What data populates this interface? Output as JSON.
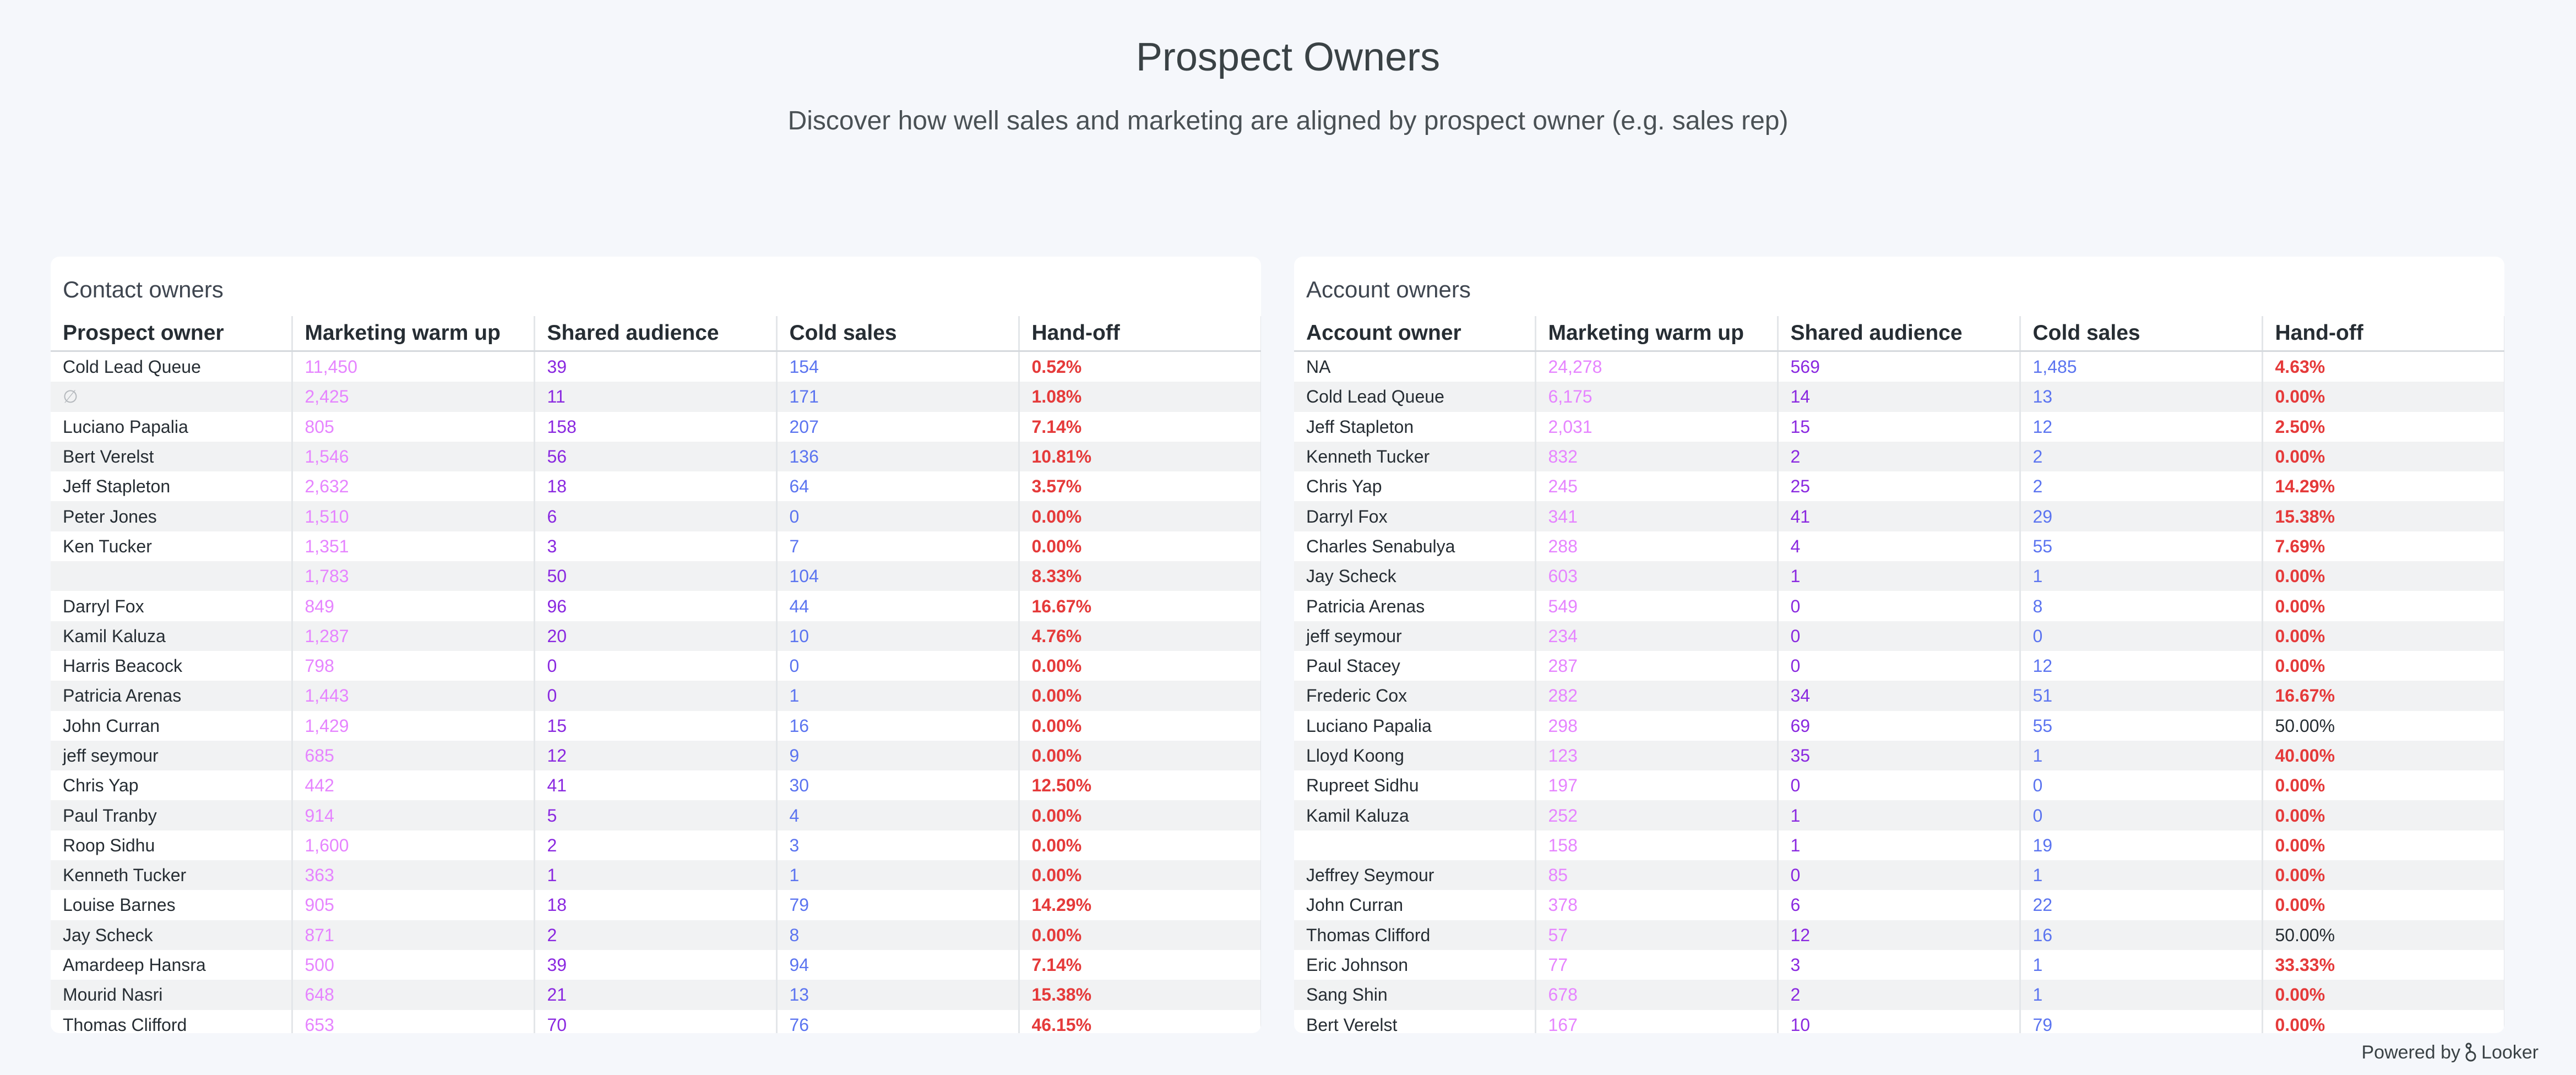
{
  "header": {
    "title": "Prospect Owners",
    "subtitle": "Discover how well sales and marketing are aligned by prospect owner (e.g. sales rep)"
  },
  "contact_tile": {
    "title": "Contact owners",
    "columns": [
      "Prospect owner",
      "Marketing warm up",
      "Shared audience",
      "Cold sales",
      "Hand-off"
    ],
    "rows": [
      [
        "Cold Lead Queue",
        "11,450",
        "39",
        "154",
        "0.52%"
      ],
      [
        "∅",
        "2,425",
        "11",
        "171",
        "1.08%"
      ],
      [
        "Luciano Papalia",
        "805",
        "158",
        "207",
        "7.14%"
      ],
      [
        "Bert Verelst",
        "1,546",
        "56",
        "136",
        "10.81%"
      ],
      [
        "Jeff Stapleton",
        "2,632",
        "18",
        "64",
        "3.57%"
      ],
      [
        "Peter Jones",
        "1,510",
        "6",
        "0",
        "0.00%"
      ],
      [
        "Ken Tucker",
        "1,351",
        "3",
        "7",
        "0.00%"
      ],
      [
        "",
        "1,783",
        "50",
        "104",
        "8.33%"
      ],
      [
        "Darryl Fox",
        "849",
        "96",
        "44",
        "16.67%"
      ],
      [
        "Kamil Kaluza",
        "1,287",
        "20",
        "10",
        "4.76%"
      ],
      [
        "Harris Beacock",
        "798",
        "0",
        "0",
        "0.00%"
      ],
      [
        "Patricia Arenas",
        "1,443",
        "0",
        "1",
        "0.00%"
      ],
      [
        "John Curran",
        "1,429",
        "15",
        "16",
        "0.00%"
      ],
      [
        "jeff seymour",
        "685",
        "12",
        "9",
        "0.00%"
      ],
      [
        "Chris Yap",
        "442",
        "41",
        "30",
        "12.50%"
      ],
      [
        "Paul Tranby",
        "914",
        "5",
        "4",
        "0.00%"
      ],
      [
        "Roop Sidhu",
        "1,600",
        "2",
        "3",
        "0.00%"
      ],
      [
        "Kenneth Tucker",
        "363",
        "1",
        "1",
        "0.00%"
      ],
      [
        "Louise Barnes",
        "905",
        "18",
        "79",
        "14.29%"
      ],
      [
        "Jay Scheck",
        "871",
        "2",
        "8",
        "0.00%"
      ],
      [
        "Amardeep Hansra",
        "500",
        "39",
        "94",
        "7.14%"
      ],
      [
        "Mourid Nasri",
        "648",
        "21",
        "13",
        "15.38%"
      ],
      [
        "Thomas Clifford",
        "653",
        "70",
        "76",
        "46.15%"
      ]
    ]
  },
  "account_tile": {
    "title": "Account owners",
    "columns": [
      "Account owner",
      "Marketing warm up",
      "Shared audience",
      "Cold sales",
      "Hand-off"
    ],
    "rows": [
      [
        "NA",
        "24,278",
        "569",
        "1,485",
        "4.63%"
      ],
      [
        "Cold Lead Queue",
        "6,175",
        "14",
        "13",
        "0.00%"
      ],
      [
        "Jeff Stapleton",
        "2,031",
        "15",
        "12",
        "2.50%"
      ],
      [
        "Kenneth Tucker",
        "832",
        "2",
        "2",
        "0.00%"
      ],
      [
        "Chris Yap",
        "245",
        "25",
        "2",
        "14.29%"
      ],
      [
        "Darryl Fox",
        "341",
        "41",
        "29",
        "15.38%"
      ],
      [
        "Charles Senabulya",
        "288",
        "4",
        "55",
        "7.69%"
      ],
      [
        "Jay Scheck",
        "603",
        "1",
        "1",
        "0.00%"
      ],
      [
        "Patricia Arenas",
        "549",
        "0",
        "8",
        "0.00%"
      ],
      [
        "jeff seymour",
        "234",
        "0",
        "0",
        "0.00%"
      ],
      [
        "Paul Stacey",
        "287",
        "0",
        "12",
        "0.00%"
      ],
      [
        "Frederic Cox",
        "282",
        "34",
        "51",
        "16.67%"
      ],
      [
        "Luciano Papalia",
        "298",
        "69",
        "55",
        "50.00%"
      ],
      [
        "Lloyd Koong",
        "123",
        "35",
        "1",
        "40.00%"
      ],
      [
        "Rupreet Sidhu",
        "197",
        "0",
        "0",
        "0.00%"
      ],
      [
        "Kamil Kaluza",
        "252",
        "1",
        "0",
        "0.00%"
      ],
      [
        "",
        "158",
        "1",
        "19",
        "0.00%"
      ],
      [
        "Jeffrey Seymour",
        "85",
        "0",
        "1",
        "0.00%"
      ],
      [
        "John Curran",
        "378",
        "6",
        "22",
        "0.00%"
      ],
      [
        "Thomas Clifford",
        "57",
        "12",
        "16",
        "50.00%"
      ],
      [
        "Eric Johnson",
        "77",
        "3",
        "1",
        "33.33%"
      ],
      [
        "Sang Shin",
        "678",
        "2",
        "1",
        "0.00%"
      ],
      [
        "Bert Verelst",
        "167",
        "10",
        "79",
        "0.00%"
      ]
    ],
    "plain_handoff_rows": [
      12,
      19
    ]
  },
  "footer": {
    "powered_by": "Powered by",
    "brand": "Looker"
  },
  "colors": {
    "marketing_warm_up": "#e684ff",
    "shared_audience": "#8a28e0",
    "cold_sales": "#5b74f0",
    "hand_off": "#e53a3a",
    "background": "#f5f7fb"
  }
}
